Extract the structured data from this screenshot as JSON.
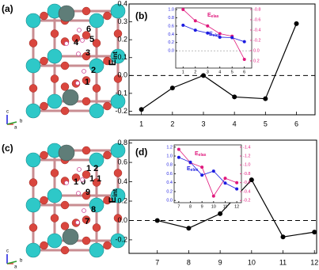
{
  "structures": [
    {
      "panel_label": "(a)",
      "site_labels": [
        "1",
        "2",
        "3",
        "4",
        "5",
        "6"
      ],
      "axis_labels": [
        "c",
        "a",
        "b"
      ]
    },
    {
      "panel_label": "(c)",
      "site_labels": [
        "7",
        "8",
        "9",
        "1 0",
        "1 1",
        "1 2"
      ],
      "axis_labels": [
        "c",
        "a",
        "b"
      ]
    }
  ],
  "chart_data": [
    {
      "type": "line",
      "panel_label": "(b)",
      "ylabel": "E",
      "ylabel_sub": "int",
      "x": [
        1,
        2,
        3,
        4,
        5,
        6
      ],
      "series": [
        {
          "color": "#000000",
          "values": [
            -0.19,
            -0.07,
            0.0,
            -0.12,
            -0.13,
            0.29
          ]
        }
      ],
      "xlim": [
        0.6,
        6.6
      ],
      "xticks": [
        1,
        2,
        3,
        4,
        5,
        6
      ],
      "ylim": [
        -0.22,
        0.4
      ],
      "yticks": [
        -0.2,
        -0.1,
        {
          "value": 0,
          "label": "0.0"
        },
        0.1,
        0.2,
        0.3,
        0.4
      ],
      "zero_line": true
    },
    {
      "type": "line",
      "x": [
        1,
        2,
        3,
        4,
        5,
        6
      ],
      "series": [
        {
          "name": "E",
          "name_sub": "elas",
          "color": "#e0197d",
          "axis": "y2",
          "values": [
            -0.8,
            -0.58,
            -0.48,
            -0.33,
            -0.28,
            0.17
          ]
        },
        {
          "name": "E",
          "name_sub": "elec",
          "color": "#1c1ce0",
          "values": [
            0.62,
            0.5,
            0.43,
            0.33,
            0.32,
            0.22
          ]
        }
      ],
      "xlim": [
        0.4,
        6.6
      ],
      "xticks": [
        1,
        2,
        3,
        4,
        5,
        6
      ],
      "ylim": [
        -0.42,
        1.04
      ],
      "yticks": [
        {
          "value": 0,
          "label": "0.0"
        },
        0.2,
        0.4,
        0.6,
        0.8,
        {
          "value": 1,
          "label": "1.0"
        }
      ],
      "y2lim": [
        0.34,
        -0.83
      ],
      "y2ticks": [
        0.2,
        {
          "value": 0,
          "label": "0.0"
        },
        -0.2,
        -0.4,
        -0.6,
        -0.8
      ],
      "zero_line": true
    },
    {
      "type": "line",
      "panel_label": "(d)",
      "ylabel": "E",
      "ylabel_sub": "int",
      "x": [
        7,
        8,
        9,
        10,
        11,
        12
      ],
      "series": [
        {
          "color": "#000000",
          "values": [
            0.0,
            -0.08,
            0.07,
            0.42,
            -0.17,
            -0.12
          ]
        }
      ],
      "xlim": [
        6.1,
        12.07
      ],
      "xticks": [
        7,
        8,
        9,
        10,
        11,
        12
      ],
      "ylim": [
        -0.34,
        0.83
      ],
      "yticks": [
        -0.2,
        {
          "value": 0,
          "label": "0.0"
        },
        0.2,
        0.4,
        0.6,
        0.8
      ],
      "zero_line": true
    },
    {
      "type": "line",
      "x": [
        7,
        8,
        9,
        10,
        11,
        12
      ],
      "series": [
        {
          "name": "E",
          "name_sub": "elas",
          "color": "#e0197d",
          "axis": "y2",
          "values": [
            -1.35,
            -1.05,
            -0.95,
            -0.3,
            -0.7,
            -0.6
          ]
        },
        {
          "name": "E",
          "name_sub": "elec",
          "color": "#1c1ce0",
          "values": [
            0.97,
            0.86,
            0.57,
            0.66,
            0.39,
            0.26
          ]
        }
      ],
      "xlim": [
        6.6,
        12.4
      ],
      "xticks": [
        7,
        8,
        9,
        10,
        11,
        12
      ],
      "ylim": [
        -0.05,
        1.25
      ],
      "yticks": [
        {
          "value": 0,
          "label": "0.0"
        },
        0.2,
        0.4,
        0.6,
        0.8,
        {
          "value": 1,
          "label": "1.0"
        },
        1.2
      ],
      "y2lim": [
        -0.15,
        -1.45
      ],
      "y2ticks": [
        -0.2,
        -0.4,
        -0.6,
        -0.8,
        {
          "value": -1,
          "label": "-1.0"
        },
        -1.2,
        -1.4
      ]
    }
  ]
}
